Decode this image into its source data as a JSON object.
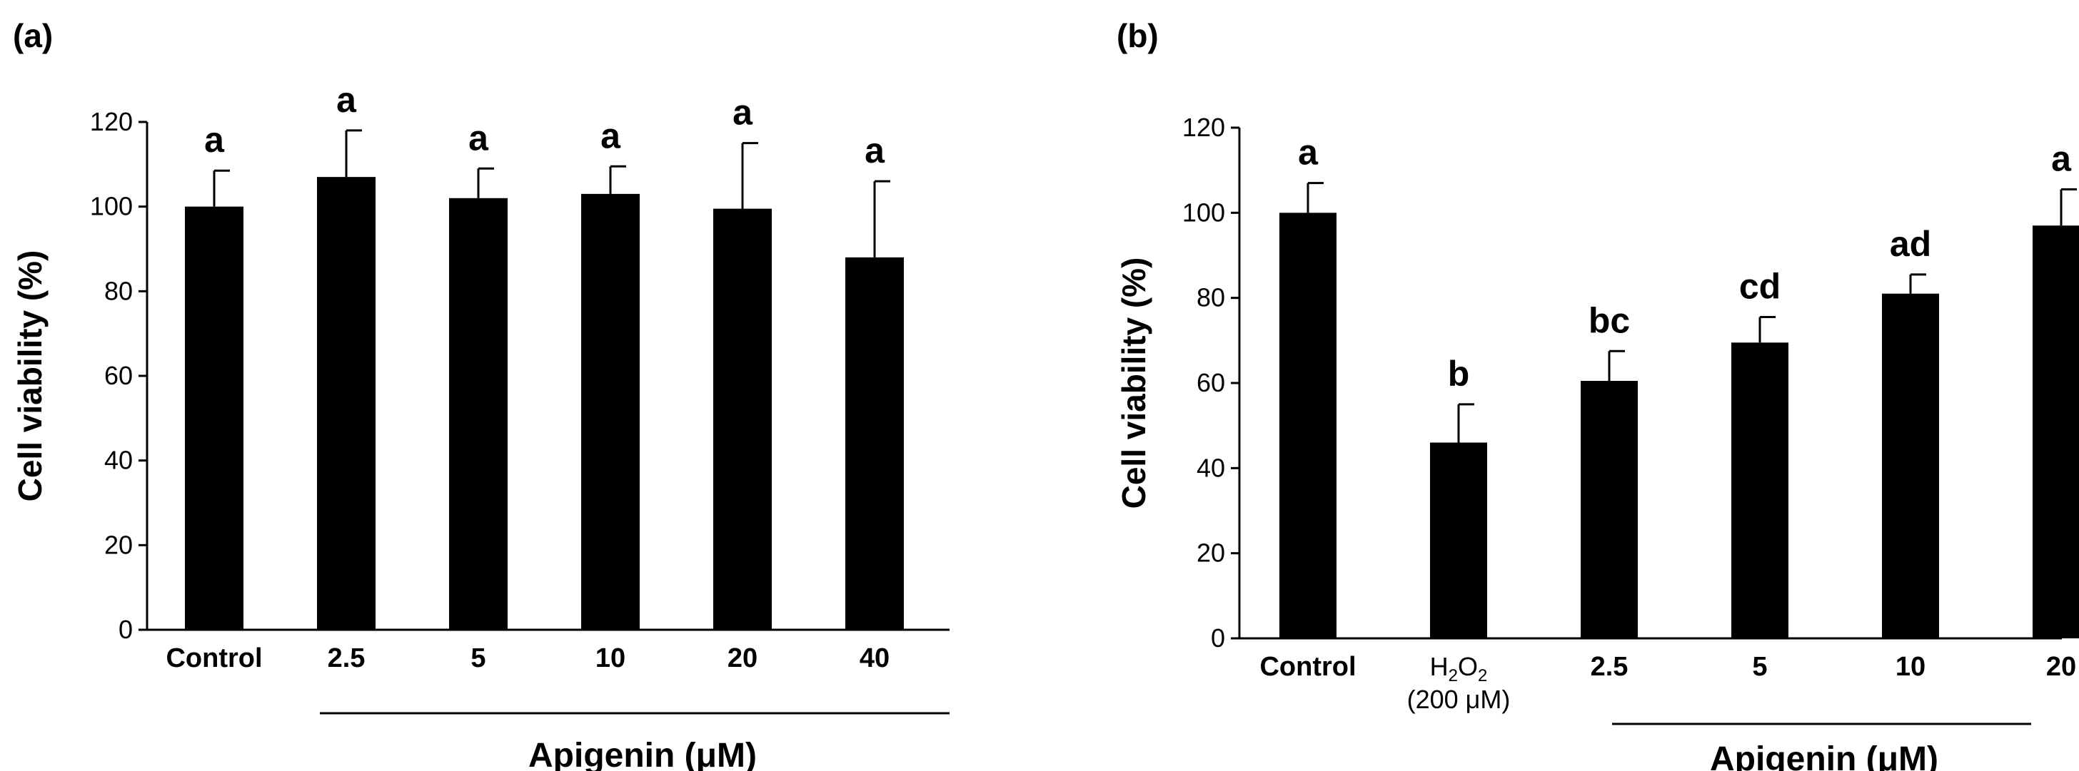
{
  "chart_data": [
    {
      "type": "bar",
      "panel": "(a)",
      "ylabel": "Cell viability (%)",
      "ylim": [
        0,
        120
      ],
      "yticks": [
        0,
        20,
        40,
        60,
        80,
        100,
        120
      ],
      "categories": [
        "Control",
        "2.5",
        "5",
        "10",
        "20",
        "40"
      ],
      "values": [
        100,
        107,
        102,
        103,
        99.5,
        88
      ],
      "errors": [
        8.5,
        11,
        7,
        6.5,
        15.5,
        18
      ],
      "significance": [
        "a",
        "a",
        "a",
        "a",
        "a",
        "a"
      ],
      "group_label": "Apigenin (μM)",
      "color": "#000000"
    },
    {
      "type": "bar",
      "panel": "(b)",
      "ylabel": "Cell viability (%)",
      "ylim": [
        0,
        120
      ],
      "yticks": [
        0,
        20,
        40,
        60,
        80,
        100,
        120
      ],
      "categories": [
        "Control",
        "H2O2",
        "2.5",
        "5",
        "10",
        "20"
      ],
      "category_note": "(200 μM)",
      "values": [
        100,
        46,
        60.5,
        69.5,
        81,
        97
      ],
      "errors": [
        7,
        9,
        7,
        6,
        4.5,
        8.5
      ],
      "significance": [
        "a",
        "b",
        "bc",
        "cd",
        "ad",
        "a"
      ],
      "group_label": "Apigenin (μM)",
      "color": "#000000"
    }
  ]
}
